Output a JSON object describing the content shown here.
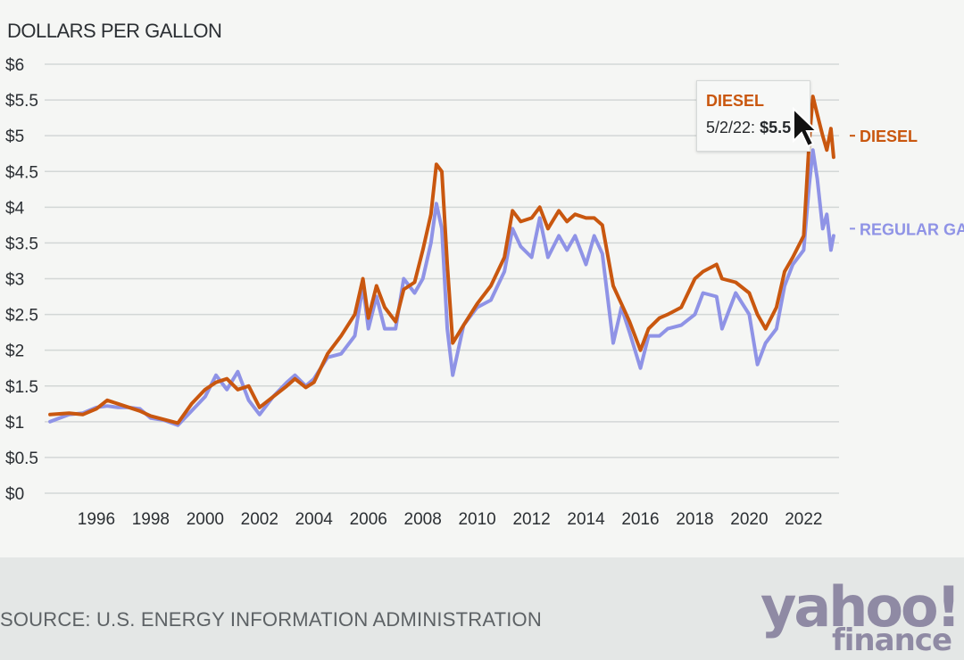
{
  "unit_label": "DOLLARS PER GALLON",
  "source": "SOURCE: U.S. ENERGY INFORMATION ADMINISTRATION",
  "logo": {
    "line1": "yahoo!",
    "line2": "finance"
  },
  "tooltip": {
    "series": "DIESEL",
    "date": "5/2/22:",
    "value": "$5.5"
  },
  "chart_data": {
    "type": "line",
    "ylabel": "DOLLARS PER GALLON",
    "y_ticks": [
      "$6",
      "$5.5",
      "$5",
      "$4.5",
      "$4",
      "$3.5",
      "$3",
      "$2.5",
      "$2",
      "$1.5",
      "$1",
      "$0.5",
      "$0"
    ],
    "y_tick_values": [
      6,
      5.5,
      5,
      4.5,
      4,
      3.5,
      3,
      2.5,
      2,
      1.5,
      1,
      0.5,
      0
    ],
    "x_ticks": [
      "1996",
      "1998",
      "2000",
      "2002",
      "2004",
      "2006",
      "2008",
      "2010",
      "2012",
      "2014",
      "2016",
      "2018",
      "2020",
      "2022"
    ],
    "x_tick_values": [
      1996,
      1998,
      2000,
      2002,
      2004,
      2006,
      2008,
      2010,
      2012,
      2014,
      2016,
      2018,
      2020,
      2022
    ],
    "xlim": [
      1994.1,
      2023.3
    ],
    "ylim": [
      0,
      6
    ],
    "grid": true,
    "colors": {
      "diesel": "#c9570f",
      "regular_gas": "#8f93e6"
    },
    "series": [
      {
        "name": "DIESEL",
        "x": [
          1994.3,
          1995.0,
          1995.5,
          1996.0,
          1996.4,
          1996.8,
          1997.2,
          1997.6,
          1998.0,
          1998.5,
          1999.0,
          1999.5,
          2000.0,
          2000.4,
          2000.8,
          2001.2,
          2001.6,
          2002.0,
          2002.5,
          2003.0,
          2003.3,
          2003.7,
          2004.0,
          2004.5,
          2005.0,
          2005.5,
          2005.8,
          2006.0,
          2006.3,
          2006.6,
          2007.0,
          2007.3,
          2007.7,
          2008.0,
          2008.3,
          2008.5,
          2008.7,
          2008.9,
          2009.1,
          2009.5,
          2010.0,
          2010.5,
          2011.0,
          2011.3,
          2011.6,
          2012.0,
          2012.3,
          2012.6,
          2013.0,
          2013.3,
          2013.6,
          2014.0,
          2014.3,
          2014.6,
          2015.0,
          2015.3,
          2015.6,
          2016.0,
          2016.3,
          2016.7,
          2017.0,
          2017.5,
          2018.0,
          2018.3,
          2018.8,
          2019.0,
          2019.5,
          2020.0,
          2020.3,
          2020.6,
          2021.0,
          2021.3,
          2021.6,
          2022.0,
          2022.2,
          2022.34,
          2022.5,
          2022.7,
          2022.85,
          2023.0,
          2023.1
        ],
        "values": [
          1.1,
          1.12,
          1.1,
          1.18,
          1.3,
          1.25,
          1.2,
          1.15,
          1.08,
          1.03,
          0.98,
          1.25,
          1.45,
          1.55,
          1.6,
          1.45,
          1.5,
          1.2,
          1.35,
          1.5,
          1.6,
          1.48,
          1.55,
          1.95,
          2.2,
          2.5,
          3.0,
          2.45,
          2.9,
          2.6,
          2.4,
          2.85,
          2.95,
          3.4,
          3.9,
          4.6,
          4.5,
          3.2,
          2.1,
          2.35,
          2.65,
          2.9,
          3.3,
          3.95,
          3.8,
          3.85,
          4.0,
          3.7,
          3.95,
          3.8,
          3.9,
          3.85,
          3.85,
          3.75,
          2.9,
          2.65,
          2.4,
          2.0,
          2.3,
          2.45,
          2.5,
          2.6,
          3.0,
          3.1,
          3.2,
          3.0,
          2.95,
          2.8,
          2.5,
          2.3,
          2.6,
          3.1,
          3.3,
          3.6,
          4.9,
          5.55,
          5.3,
          5.0,
          4.8,
          5.1,
          4.7
        ]
      },
      {
        "name": "REGULAR GAS",
        "x": [
          1994.3,
          1995.0,
          1995.5,
          1996.0,
          1996.4,
          1996.8,
          1997.2,
          1997.6,
          1998.0,
          1998.5,
          1999.0,
          1999.5,
          2000.0,
          2000.4,
          2000.8,
          2001.2,
          2001.6,
          2002.0,
          2002.5,
          2003.0,
          2003.3,
          2003.7,
          2004.0,
          2004.5,
          2005.0,
          2005.5,
          2005.8,
          2006.0,
          2006.3,
          2006.6,
          2007.0,
          2007.3,
          2007.7,
          2008.0,
          2008.3,
          2008.5,
          2008.7,
          2008.9,
          2009.1,
          2009.5,
          2010.0,
          2010.5,
          2011.0,
          2011.3,
          2011.6,
          2012.0,
          2012.3,
          2012.6,
          2013.0,
          2013.3,
          2013.6,
          2014.0,
          2014.3,
          2014.6,
          2015.0,
          2015.3,
          2015.6,
          2016.0,
          2016.3,
          2016.7,
          2017.0,
          2017.5,
          2018.0,
          2018.3,
          2018.8,
          2019.0,
          2019.5,
          2020.0,
          2020.3,
          2020.6,
          2021.0,
          2021.3,
          2021.6,
          2022.0,
          2022.2,
          2022.34,
          2022.5,
          2022.7,
          2022.85,
          2023.0,
          2023.1
        ],
        "values": [
          1.0,
          1.1,
          1.12,
          1.2,
          1.22,
          1.2,
          1.2,
          1.18,
          1.05,
          1.02,
          0.95,
          1.15,
          1.35,
          1.65,
          1.45,
          1.7,
          1.3,
          1.1,
          1.35,
          1.55,
          1.65,
          1.5,
          1.6,
          1.9,
          1.95,
          2.2,
          2.9,
          2.3,
          2.75,
          2.3,
          2.3,
          3.0,
          2.8,
          3.0,
          3.5,
          4.05,
          3.7,
          2.3,
          1.65,
          2.35,
          2.6,
          2.7,
          3.1,
          3.7,
          3.45,
          3.3,
          3.85,
          3.3,
          3.6,
          3.4,
          3.6,
          3.2,
          3.6,
          3.35,
          2.1,
          2.6,
          2.25,
          1.75,
          2.2,
          2.2,
          2.3,
          2.35,
          2.5,
          2.8,
          2.75,
          2.3,
          2.8,
          2.5,
          1.8,
          2.1,
          2.3,
          2.9,
          3.2,
          3.4,
          4.3,
          4.8,
          4.4,
          3.7,
          3.9,
          3.4,
          3.6
        ]
      }
    ],
    "end_labels": [
      "DIESEL",
      "REGULAR GAS"
    ]
  }
}
